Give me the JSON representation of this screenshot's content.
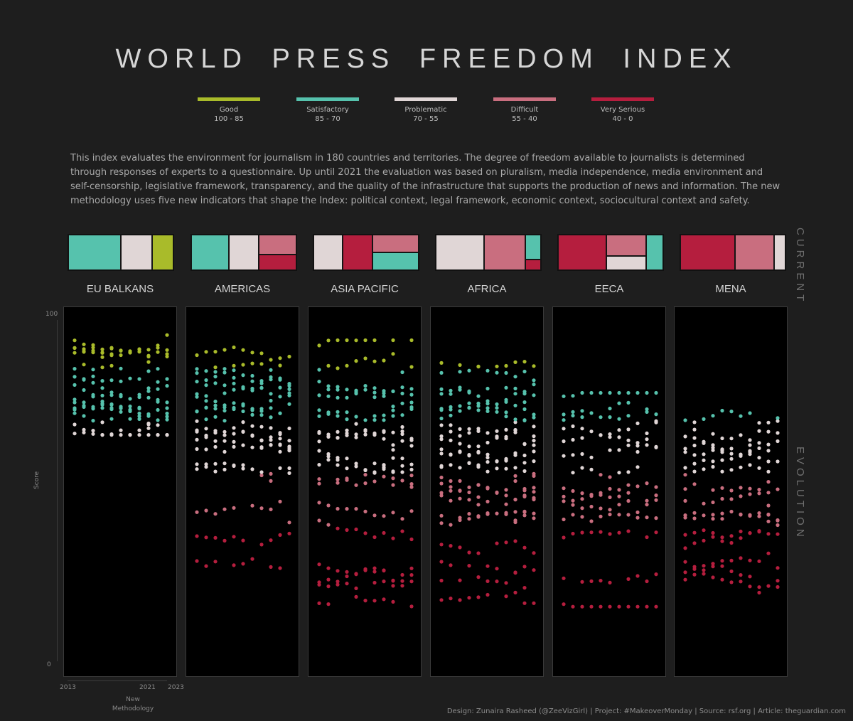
{
  "title": "WORLD PRESS FREEDOM INDEX",
  "legend": [
    {
      "name": "Good",
      "range": "100 - 85",
      "color": "#a9bb2a"
    },
    {
      "name": "Satisfactory",
      "range": "85 - 70",
      "color": "#56c2ad"
    },
    {
      "name": "Problematic",
      "range": "70 - 55",
      "color": "#e0d6d6"
    },
    {
      "name": "Difficult",
      "range": "55 - 40",
      "color": "#c96e7f"
    },
    {
      "name": "Very Serious",
      "range": "40 - 0",
      "color": "#b51e3e"
    }
  ],
  "description": "This index evaluates the environment for journalism in 180 countries and territories. The degree of freedom available to journalists is determined through responses of experts to a questionnaire. Up until 2021 the evaluation was based on pluralism, media independence, media environment and self-censorship, legislative framework, transparency, and the quality of the infrastructure that supports the production of news and information. The new methodology uses five new indicators that shape the Index: political context, legal framework, economic context, sociocultural context and safety.",
  "side_labels": {
    "current": "CURRENT",
    "evolution": "EVOLUTION"
  },
  "axis": {
    "y_title": "Score",
    "y_max_label": "100",
    "y_min_label": "0",
    "x_start": "2013",
    "x_mid": "2021",
    "x_mid_note": "New Methodology",
    "x_end": "2023"
  },
  "footer": "Design: Zunaira Rasheed (@ZeeVizGirl) | Project: #MakeoverMonday | Source: rsf.org | Article: theguardian.com",
  "chart_data": {
    "type": "scatter",
    "x": [
      2013,
      2014,
      2015,
      2016,
      2017,
      2018,
      2019,
      2020,
      2021,
      2022,
      2023
    ],
    "ylim": [
      0,
      100
    ],
    "category_colors": {
      "Good": "#a9bb2a",
      "Satisfactory": "#56c2ad",
      "Problematic": "#e0d6d6",
      "Difficult": "#c96e7f",
      "Very Serious": "#b51e3e"
    },
    "regions": [
      {
        "name": "EU BALKANS",
        "current_mix": [
          {
            "category": "Satisfactory",
            "share": 0.47
          },
          {
            "category": "Problematic",
            "share": 0.28
          },
          {
            "category": "Good",
            "share": 0.25
          }
        ],
        "score_range": [
          66,
          95
        ],
        "series_scores": [
          93,
          91,
          90,
          88,
          86,
          83,
          81,
          79,
          77,
          76,
          74,
          73,
          71,
          69,
          67
        ]
      },
      {
        "name": "AMERICAS",
        "current_mix": [
          {
            "category": "Satisfactory",
            "share": 0.3
          },
          {
            "category": "Problematic",
            "share": 0.27
          },
          {
            "category": "Difficult",
            "share": 0.24
          },
          {
            "category": "Very Serious",
            "share": 0.19
          }
        ],
        "score_range": [
          28,
          91
        ],
        "series_scores": [
          89,
          86,
          84,
          82,
          80,
          78,
          76,
          74,
          72,
          70,
          68,
          66,
          64,
          62,
          59,
          55,
          45,
          36,
          30
        ]
      },
      {
        "name": "ASIA PACIFIC",
        "current_mix": [
          {
            "category": "Problematic",
            "share": 0.26
          },
          {
            "category": "Very Serious",
            "share": 0.26
          },
          {
            "category": "Difficult",
            "share": 0.24
          },
          {
            "category": "Satisfactory",
            "share": 0.24
          }
        ],
        "score_range": [
          15,
          93
        ],
        "series_scores": [
          91,
          84,
          80,
          78,
          76,
          73,
          70,
          68,
          66,
          64,
          62,
          60,
          57,
          54,
          51,
          46,
          42,
          29,
          25,
          22,
          18
        ]
      },
      {
        "name": "AFRICA",
        "current_mix": [
          {
            "category": "Problematic",
            "share": 0.41
          },
          {
            "category": "Difficult",
            "share": 0.35
          },
          {
            "category": "Satisfactory",
            "share": 0.14
          },
          {
            "category": "Very Serious",
            "share": 0.1
          }
        ],
        "score_range": [
          18,
          89
        ],
        "series_scores": [
          87,
          84,
          80,
          77,
          74,
          72,
          70,
          68,
          66,
          64,
          62,
          60,
          58,
          56,
          54,
          52,
          50,
          48,
          44,
          40,
          34,
          30,
          25,
          20
        ]
      },
      {
        "name": "EECA",
        "current_mix": [
          {
            "category": "Very Serious",
            "share": 0.53
          },
          {
            "category": "Difficult",
            "share": 0.31
          },
          {
            "category": "Problematic",
            "share": 0.16
          }
        ],
        "score_range": [
          17,
          78
        ],
        "series_scores": [
          76,
          73,
          70,
          67,
          64,
          60,
          56,
          52,
          49,
          46,
          43,
          37,
          24,
          19
        ]
      },
      {
        "name": "MENA",
        "current_mix": [
          {
            "category": "Very Serious",
            "share": 0.51
          },
          {
            "category": "Difficult",
            "share": 0.37
          },
          {
            "category": "Problematic",
            "share": 0.12
          }
        ],
        "score_range": [
          21,
          73
        ],
        "series_scores": [
          71,
          68,
          66,
          63,
          60,
          57,
          54,
          50,
          47,
          44,
          41,
          38,
          35,
          31,
          28,
          24
        ]
      }
    ]
  }
}
